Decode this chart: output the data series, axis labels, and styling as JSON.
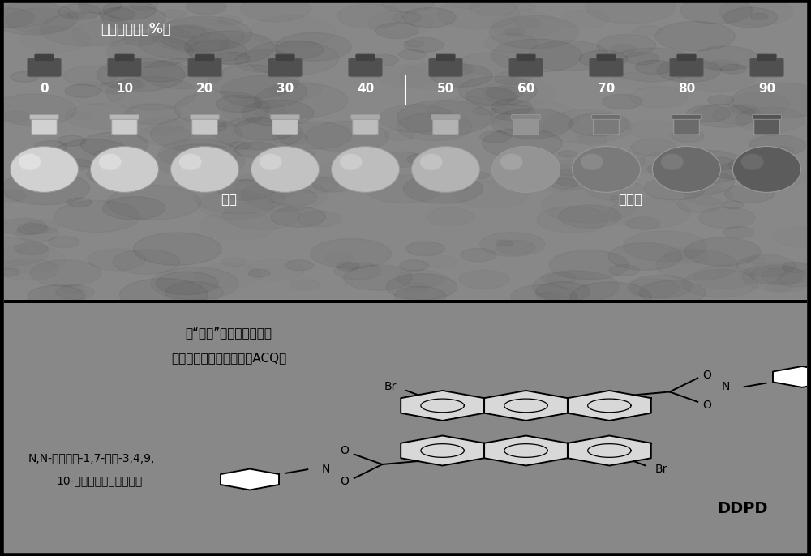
{
  "top_panel_bg": "#3a3a3a",
  "bottom_panel_bg": "#ffffff",
  "border_color": "#000000",
  "water_content_label": "水含量（体积%）",
  "water_percentages": [
    "0",
    "10",
    "20",
    "30",
    "40",
    "50",
    "60",
    "70",
    "80",
    "90"
  ],
  "solution_label": "溶液",
  "aggregate_label": "聚集体",
  "text_line1": "在“传统”的发光体体系中",
  "text_line2": "光发射的聚集导致猌灯（ACQ）",
  "chem_name_line1": "N,N-二环己基-1,7-二渴-3,4,9,",
  "chem_name_line2": "10-二萨嵌苯四甲酰二亚胺",
  "chem_abbrev": "DDPD",
  "figure_width": 10.0,
  "figure_height": 6.86,
  "dpi": 100
}
